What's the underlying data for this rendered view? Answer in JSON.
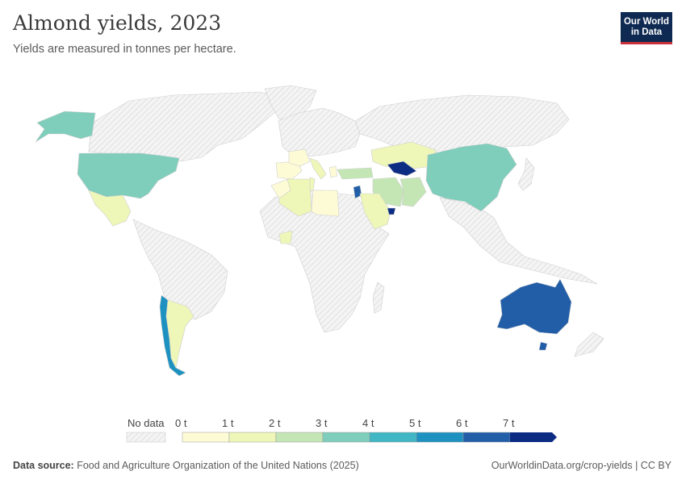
{
  "header": {
    "title": "Almond yields, 2023",
    "subtitle": "Yields are measured in tonnes per hectare.",
    "logo_line1": "Our World",
    "logo_line2": "in Data"
  },
  "legend": {
    "no_data_label": "No data",
    "bins": [
      {
        "label": "0 t",
        "color": "#fdfbd6"
      },
      {
        "label": "1 t",
        "color": "#eef7b7"
      },
      {
        "label": "2 t",
        "color": "#c4e6b4"
      },
      {
        "label": "3 t",
        "color": "#7fcdbb"
      },
      {
        "label": "4 t",
        "color": "#41b6c4"
      },
      {
        "label": "5 t",
        "color": "#1d91c0"
      },
      {
        "label": "6 t",
        "color": "#225ea8"
      },
      {
        "label": "7 t",
        "color": "#0c2c84"
      }
    ]
  },
  "colors": {
    "no_data": "#f0f0f0",
    "border": "#cfcfcf"
  },
  "footer": {
    "source_label": "Data source:",
    "source_text": "Food and Agriculture Organization of the United Nations (2025)",
    "attribution": "OurWorldinData.org/crop-yields | CC BY"
  }
}
